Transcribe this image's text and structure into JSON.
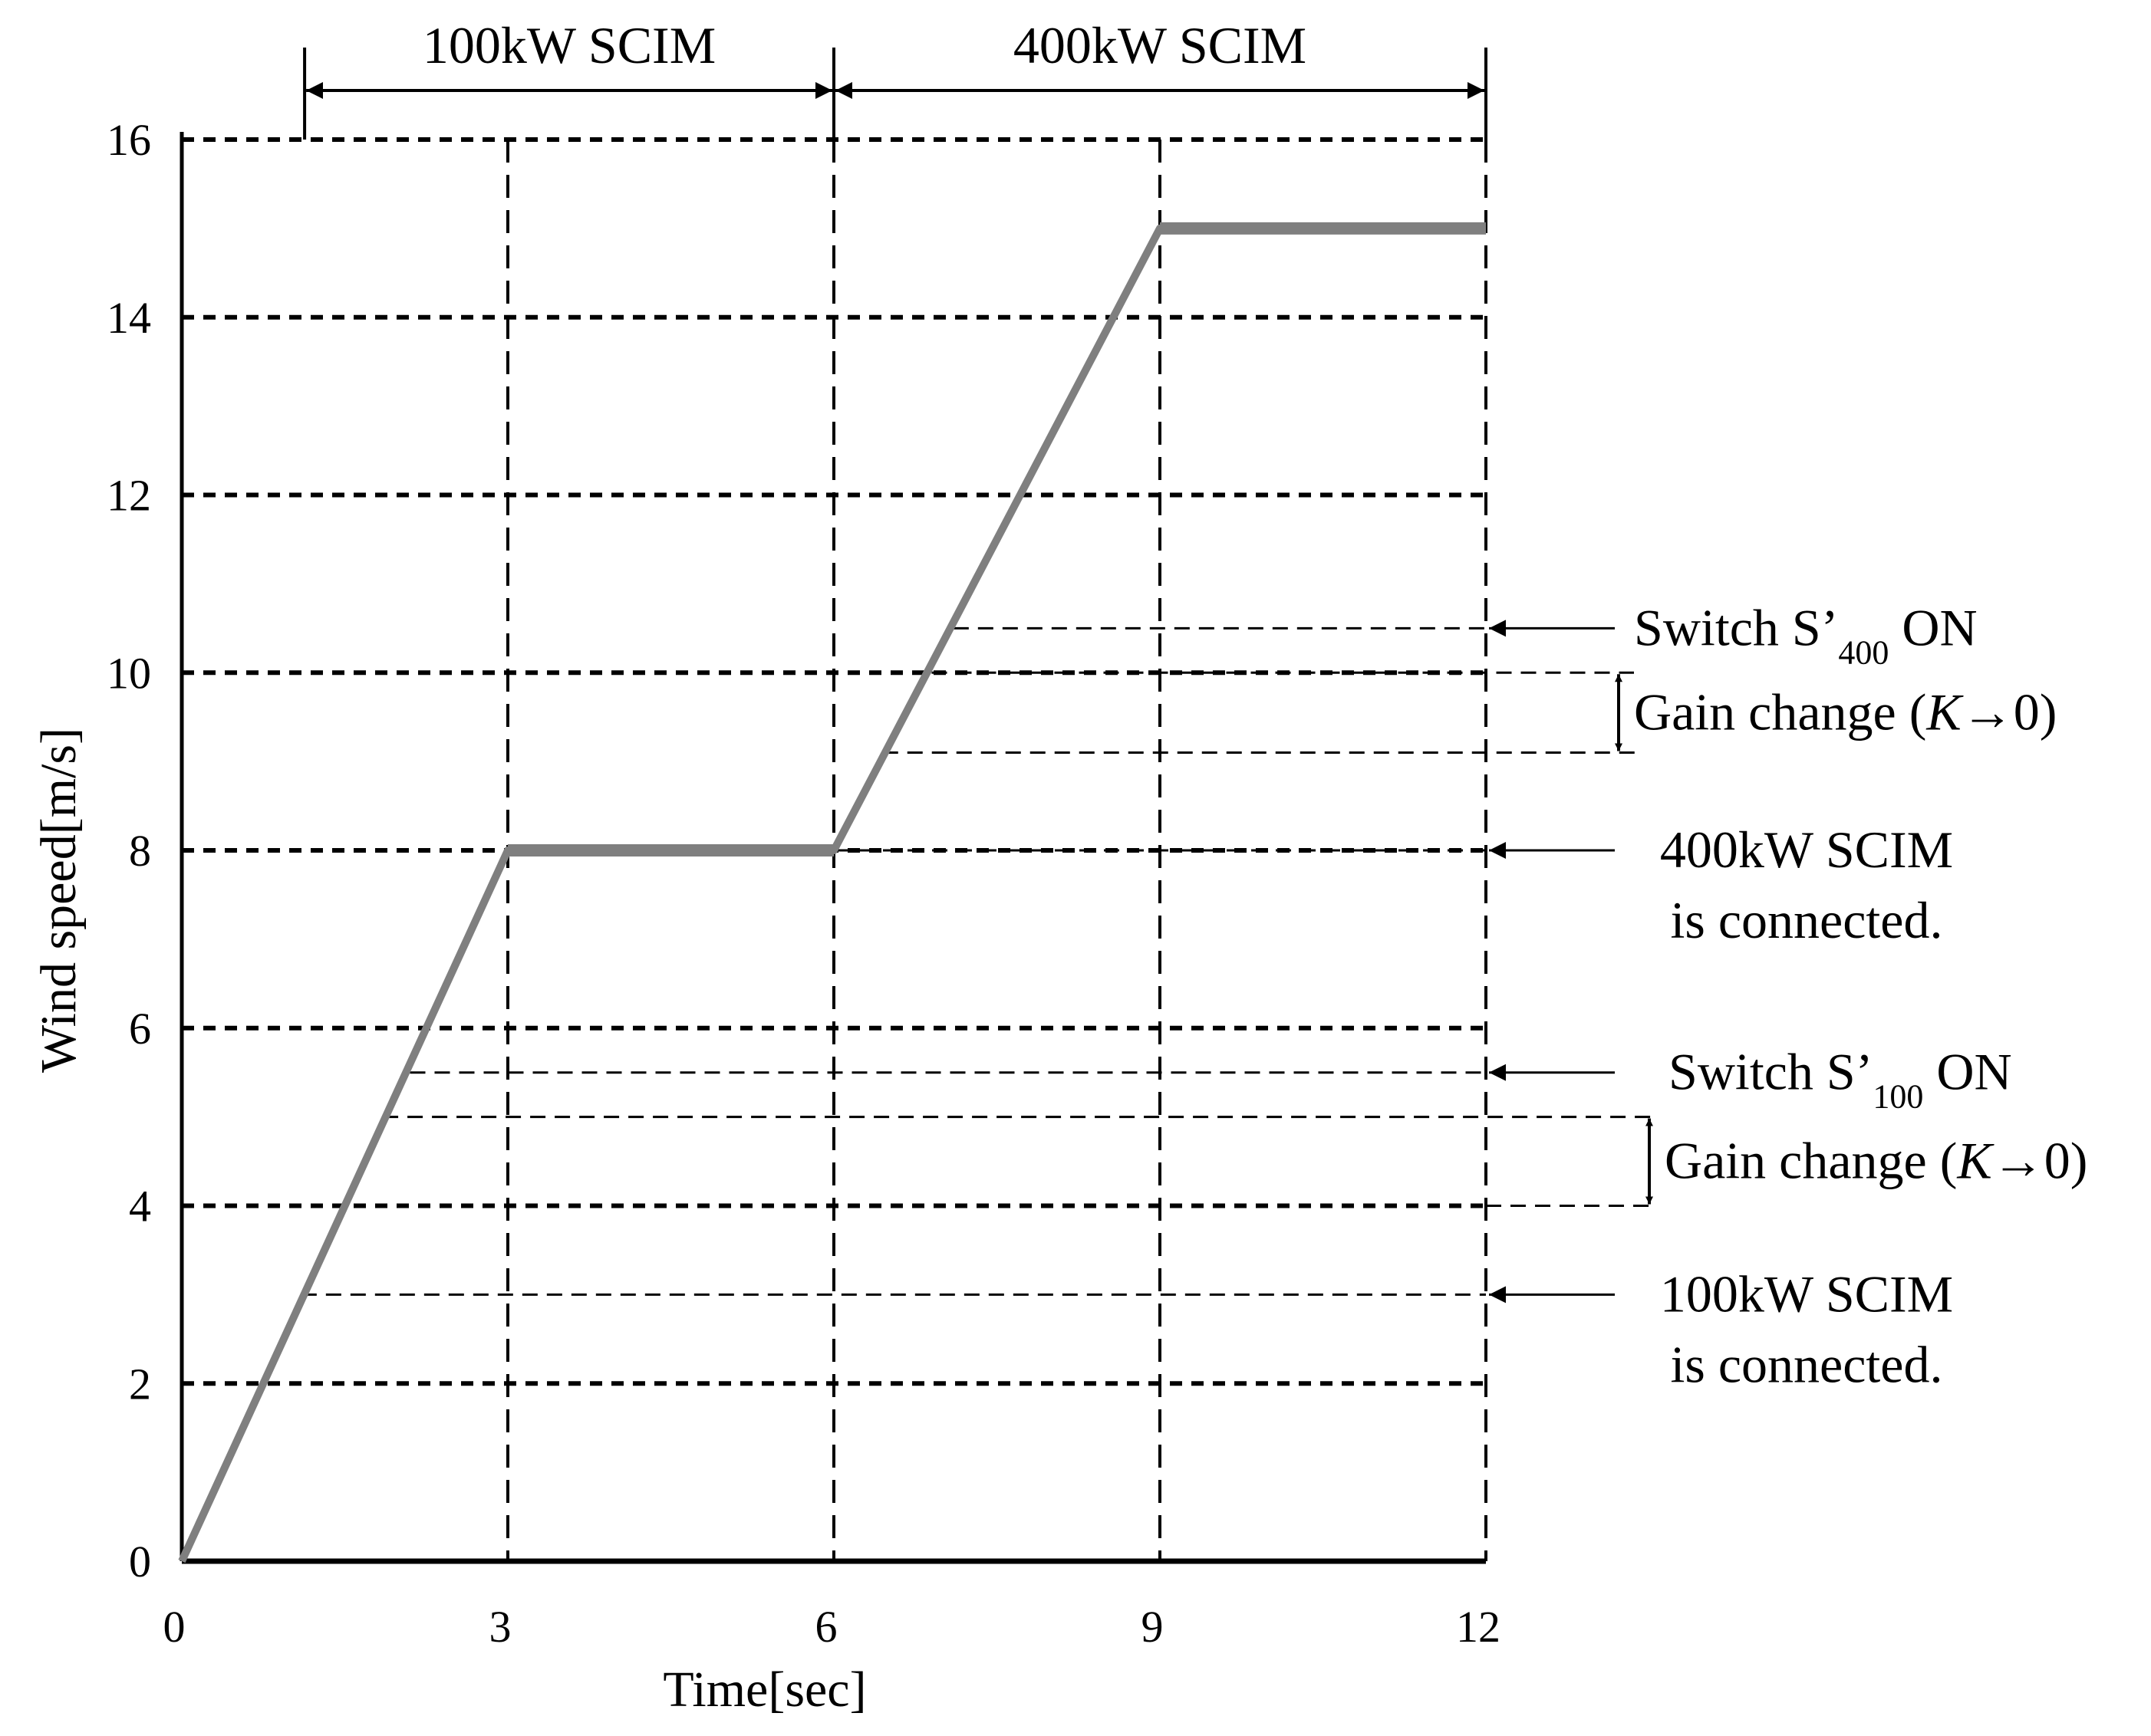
{
  "chart_data": {
    "type": "line",
    "title": "",
    "xlabel": "Time[sec]",
    "ylabel": "Wind speed[m/s]",
    "xlim": [
      0,
      12
    ],
    "ylim": [
      0,
      16
    ],
    "xticks": [
      "0",
      "3",
      "6",
      "9",
      "12"
    ],
    "yticks": [
      "0",
      "2",
      "4",
      "6",
      "8",
      "10",
      "12",
      "14",
      "16"
    ],
    "grid": true,
    "series": [
      {
        "name": "",
        "x": [
          0,
          3,
          6,
          9,
          12
        ],
        "y": [
          0,
          8,
          8,
          15,
          15
        ]
      }
    ],
    "colors": {
      "series": "#7f7f7f",
      "axis": "#000000",
      "grid": "#000000"
    },
    "spans": [
      {
        "label": "100kW SCIM",
        "x_start": 1.13,
        "x_end": 6
      },
      {
        "label": "400kW SCIM",
        "x_start": 6,
        "x_end": 12
      }
    ],
    "reference_lines": [
      {
        "y": 3,
        "x_start": 1.1
      },
      {
        "y": 5,
        "x_start": 1.85
      },
      {
        "y": 5.5,
        "x_start": 2.1
      },
      {
        "y": 8,
        "x_start": 6
      },
      {
        "y": 9.1,
        "x_start": 6.45
      },
      {
        "y": 10,
        "x_start": 6.9
      },
      {
        "y": 10.5,
        "x_start": 7.1
      }
    ],
    "annotations": [
      {
        "text_main": "Switch S’",
        "sub": "400",
        "text_after": " ON",
        "y": 10.5,
        "arrow": true
      },
      {
        "text_pre": "Gain change (",
        "italic": "K",
        "text_post": "→0)",
        "y_start": 10,
        "y_end": 9.1,
        "bracket": true
      },
      {
        "lines": [
          "400kW SCIM",
          "is connected."
        ],
        "y": 8,
        "arrow": true
      },
      {
        "text_main": "Switch S’",
        "sub": "100",
        "text_after": " ON",
        "y": 5.5,
        "arrow": true
      },
      {
        "text_pre": "Gain change (",
        "italic": "K",
        "text_post": "→0)",
        "y_start": 5,
        "y_end": 4,
        "bracket": true
      },
      {
        "lines": [
          "100kW SCIM",
          "is connected."
        ],
        "y": 3,
        "arrow": true
      }
    ]
  }
}
